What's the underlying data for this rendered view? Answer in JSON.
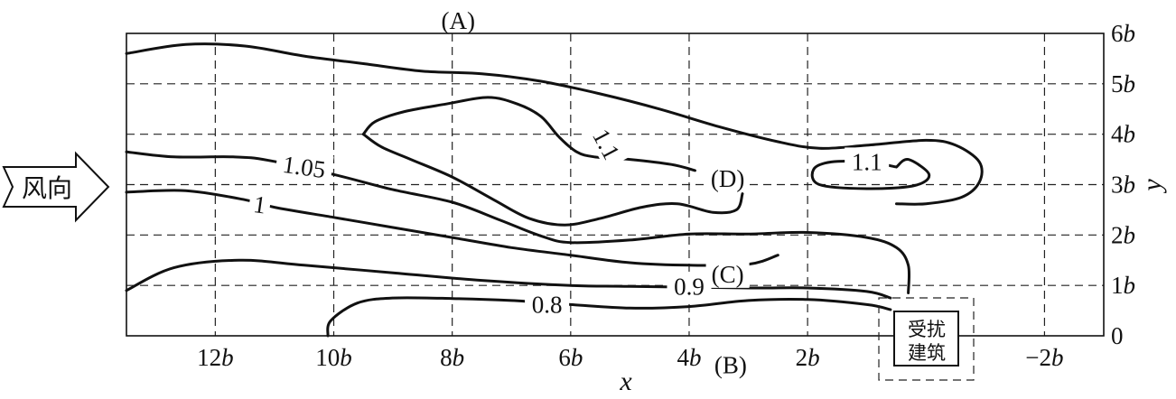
{
  "chart_data": {
    "type": "contour",
    "xlabel": "x",
    "ylabel": "y",
    "x_ticks": [
      {
        "v": 12,
        "label": "12",
        "suffix": "b"
      },
      {
        "v": 10,
        "label": "10",
        "suffix": "b"
      },
      {
        "v": 8,
        "label": "8",
        "suffix": "b"
      },
      {
        "v": 6,
        "label": "6",
        "suffix": "b"
      },
      {
        "v": 4,
        "label": "4",
        "suffix": "b"
      },
      {
        "v": 2,
        "label": "2",
        "suffix": "b"
      },
      {
        "v": -2,
        "label": "−2",
        "suffix": "b"
      }
    ],
    "y_ticks": [
      {
        "v": 0,
        "label": "0",
        "suffix": ""
      },
      {
        "v": 1,
        "label": "1",
        "suffix": "b"
      },
      {
        "v": 2,
        "label": "2",
        "suffix": "b"
      },
      {
        "v": 3,
        "label": "3",
        "suffix": "b"
      },
      {
        "v": 4,
        "label": "4",
        "suffix": "b"
      },
      {
        "v": 5,
        "label": "5",
        "suffix": "b"
      },
      {
        "v": 6,
        "label": "6",
        "suffix": "b"
      }
    ],
    "xlim": [
      13.5,
      -3
    ],
    "ylim": [
      0,
      6
    ],
    "grid": true,
    "contours": [
      {
        "id": "outer-upper",
        "level": "",
        "points": [
          [
            13.5,
            5.6
          ],
          [
            12.5,
            5.78
          ],
          [
            11.5,
            5.75
          ],
          [
            10.5,
            5.55
          ],
          [
            9.5,
            5.4
          ],
          [
            8.5,
            5.25
          ],
          [
            7.5,
            5.2
          ],
          [
            6.5,
            5.05
          ],
          [
            5.5,
            4.8
          ],
          [
            4.5,
            4.5
          ],
          [
            3.5,
            4.15
          ],
          [
            2.5,
            3.85
          ],
          [
            1.8,
            3.72
          ],
          [
            1,
            3.78
          ],
          [
            0,
            3.88
          ],
          [
            -0.5,
            3.78
          ],
          [
            -0.9,
            3.45
          ],
          [
            -0.9,
            3.05
          ],
          [
            -0.6,
            2.75
          ],
          [
            0,
            2.62
          ],
          [
            0.5,
            2.62
          ]
        ]
      },
      {
        "id": "c-1.1-left",
        "level": "1.1",
        "label_at": [
          5.4,
          3.8
        ],
        "label_rot": 62,
        "points": [
          [
            9.5,
            4.0
          ],
          [
            9.3,
            4.25
          ],
          [
            8.8,
            4.45
          ],
          [
            8.1,
            4.6
          ],
          [
            7.4,
            4.73
          ],
          [
            6.9,
            4.6
          ],
          [
            6.5,
            4.35
          ],
          [
            6.2,
            3.95
          ],
          [
            5.9,
            3.65
          ],
          [
            5.6,
            3.55
          ],
          [
            5.0,
            3.5
          ],
          [
            4.3,
            3.4
          ],
          [
            3.9,
            3.28
          ]
        ]
      },
      {
        "id": "c-1.1-left-lower",
        "level": "",
        "points": [
          [
            9.5,
            4.0
          ],
          [
            9.2,
            3.75
          ],
          [
            8.7,
            3.5
          ],
          [
            8.0,
            3.15
          ],
          [
            7.3,
            2.7
          ],
          [
            6.7,
            2.33
          ],
          [
            6.1,
            2.2
          ],
          [
            5.5,
            2.33
          ],
          [
            4.8,
            2.55
          ],
          [
            4.2,
            2.62
          ],
          [
            3.6,
            2.45
          ],
          [
            3.2,
            2.5
          ],
          [
            3.1,
            2.82
          ]
        ]
      },
      {
        "id": "c-1.1-right",
        "level": "1.1",
        "label_at": [
          1.0,
          3.45
        ],
        "label_rot": 0,
        "points": [
          [
            0.5,
            3.35
          ],
          [
            1.0,
            3.45
          ],
          [
            1.6,
            3.45
          ],
          [
            1.9,
            3.3
          ],
          [
            1.8,
            3.0
          ],
          [
            1.0,
            2.92
          ],
          [
            0.2,
            2.98
          ],
          [
            -0.05,
            3.2
          ],
          [
            0.3,
            3.5
          ],
          [
            0.5,
            3.35
          ]
        ]
      },
      {
        "id": "c-1.05",
        "level": "1.05",
        "label_at": [
          10.5,
          3.35
        ],
        "label_rot": 8,
        "points": [
          [
            13.5,
            3.65
          ],
          [
            12.7,
            3.55
          ],
          [
            11.7,
            3.55
          ],
          [
            11.1,
            3.48
          ],
          [
            10.0,
            3.2
          ],
          [
            9.0,
            2.9
          ],
          [
            8.0,
            2.65
          ],
          [
            7.2,
            2.3
          ],
          [
            6.5,
            1.98
          ],
          [
            6.0,
            1.85
          ],
          [
            5.0,
            1.9
          ],
          [
            4.0,
            2.02
          ],
          [
            3.0,
            2.02
          ],
          [
            2.0,
            2.05
          ],
          [
            1.0,
            1.95
          ],
          [
            0.5,
            1.75
          ],
          [
            0.3,
            1.4
          ],
          [
            0.3,
            0.85
          ]
        ]
      },
      {
        "id": "c-1",
        "level": "1",
        "label_at": [
          11.25,
          2.6
        ],
        "label_rot": 8,
        "points": [
          [
            13.5,
            2.85
          ],
          [
            12.5,
            2.88
          ],
          [
            11.5,
            2.7
          ],
          [
            11.0,
            2.55
          ],
          [
            10.0,
            2.35
          ],
          [
            9.0,
            2.15
          ],
          [
            8.0,
            1.95
          ],
          [
            7.0,
            1.75
          ],
          [
            6.0,
            1.6
          ],
          [
            5.0,
            1.45
          ],
          [
            4.0,
            1.4
          ],
          [
            3.0,
            1.42
          ],
          [
            2.5,
            1.6
          ]
        ]
      },
      {
        "id": "c-0.9",
        "level": "0.9",
        "label_at": [
          4.0,
          0.98
        ],
        "label_rot": 0,
        "points": [
          [
            13.5,
            0.9
          ],
          [
            12.7,
            1.35
          ],
          [
            11.6,
            1.5
          ],
          [
            10.5,
            1.4
          ],
          [
            9.0,
            1.25
          ],
          [
            7.5,
            1.1
          ],
          [
            6.0,
            1.0
          ],
          [
            5.0,
            0.98
          ],
          [
            3.0,
            0.95
          ],
          [
            2.0,
            0.95
          ],
          [
            1.0,
            0.88
          ],
          [
            0.6,
            0.75
          ]
        ]
      },
      {
        "id": "c-0.8",
        "level": "0.8",
        "label_at": [
          6.4,
          0.62
        ],
        "label_rot": 0,
        "points": [
          [
            10.1,
            0.0
          ],
          [
            10.05,
            0.3
          ],
          [
            9.6,
            0.65
          ],
          [
            9.0,
            0.75
          ],
          [
            8.0,
            0.74
          ],
          [
            7.0,
            0.7
          ],
          [
            6.0,
            0.62
          ],
          [
            5.0,
            0.55
          ],
          [
            4.0,
            0.58
          ],
          [
            3.0,
            0.7
          ],
          [
            2.0,
            0.72
          ],
          [
            1.0,
            0.62
          ],
          [
            0.6,
            0.52
          ]
        ]
      }
    ],
    "annotations": [
      {
        "text": "(A)",
        "x": 7.9,
        "y": 6.25
      },
      {
        "text": "(B)",
        "x": 3.3,
        "y": -0.58
      },
      {
        "text": "(C)",
        "x": 3.35,
        "y": 1.22
      },
      {
        "text": "(D)",
        "x": 3.35,
        "y": 3.12
      }
    ],
    "legend_wind": "风向",
    "building_label_1": "受扰",
    "building_label_2": "建筑"
  }
}
